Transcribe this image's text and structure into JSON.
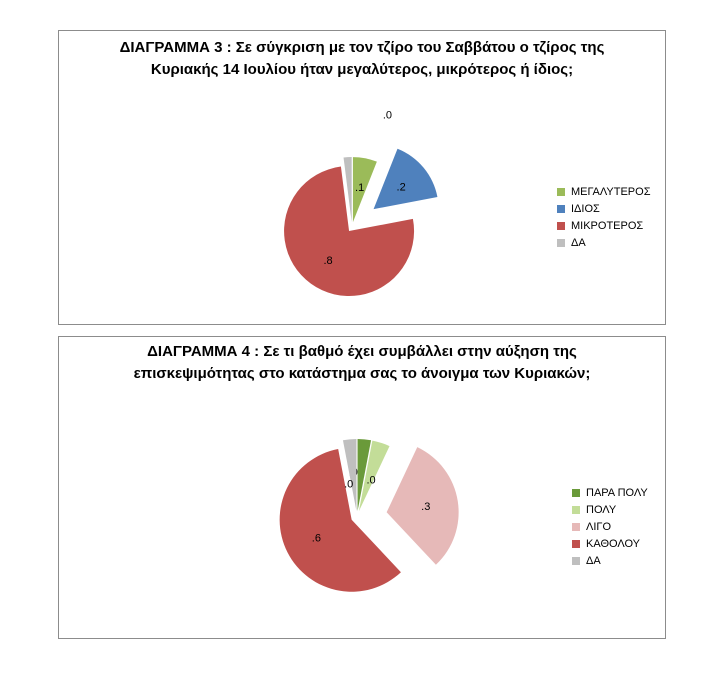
{
  "chart_data": [
    {
      "type": "pie",
      "title": "ΔΙΑΓΡΑΜΜΑ 3 : Σε σύγκριση με τον τζίρο του Σαββάτου ο τζίρος της Κυριακής 14 Ιουλίου ήταν μεγαλύτερος, μικρότερος ή ίδιος;",
      "categories": [
        "ΜΕΓΑΛΥΤΕΡΟΣ",
        "ΙΔΙΟΣ",
        "ΜΙΚΡΟΤΕΡΟΣ",
        "ΔΑ"
      ],
      "values": [
        0.06,
        0.16,
        0.76,
        0.02
      ],
      "data_labels": [
        ".1",
        ".2",
        ".8",
        ".0"
      ],
      "colors": [
        "#9bbb59",
        "#4f81bd",
        "#c0504d",
        "#bfbfbf"
      ],
      "exploded": [
        false,
        true,
        false,
        false
      ],
      "legend_position": "right"
    },
    {
      "type": "pie",
      "title": "ΔΙΑΓΡΑΜΜΑ 4 : Σε τι βαθμό έχει συμβάλλει στην αύξηση της επισκεψιμότητας στο κατάστημα σας το άνοιγμα των Κυριακών;",
      "categories": [
        "ΠΑΡΑ ΠΟΛΥ",
        "ΠΟΛΥ",
        "ΛΙΓΟ",
        "ΚΑΘΟΛΟΥ",
        "ΔΑ"
      ],
      "values": [
        0.03,
        0.04,
        0.31,
        0.59,
        0.03
      ],
      "data_labels": [
        ".0",
        ".0",
        ".3",
        ".6",
        ".0"
      ],
      "colors": [
        "#6a9a3a",
        "#c3dd98",
        "#e6b9b8",
        "#c0504d",
        "#bfbfbf"
      ],
      "exploded": [
        false,
        false,
        true,
        false,
        false
      ],
      "legend_position": "right"
    }
  ]
}
